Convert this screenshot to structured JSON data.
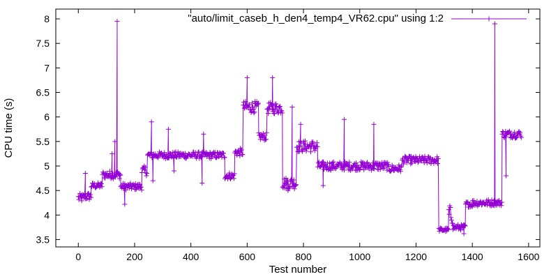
{
  "chart_data": {
    "type": "line",
    "title": "",
    "xlabel": "Test number",
    "ylabel": "CPU time (s)",
    "xlim": [
      -80,
      1640
    ],
    "ylim": [
      3.35,
      8.2
    ],
    "xticks": [
      0,
      200,
      400,
      600,
      800,
      1000,
      1200,
      1400,
      1600
    ],
    "yticks": [
      3.5,
      4,
      4.5,
      5,
      5.5,
      6,
      6.5,
      7,
      7.5,
      8
    ],
    "grid": false,
    "legend_position": "top-right",
    "marker": "plus",
    "color": "#9400d3",
    "series": [
      {
        "name": "\"auto/limit_caseb_h_den4_temp4_VR62.cpu\" using 1:2",
        "color": "#9400d3",
        "segments": [
          {
            "x0": 0,
            "x1": 20,
            "base": 4.35,
            "noise": 0.09
          },
          {
            "x0": 21,
            "x1": 45,
            "base": 4.38,
            "noise": 0.08
          },
          {
            "x0": 46,
            "x1": 85,
            "base": 4.6,
            "noise": 0.06
          },
          {
            "x0": 86,
            "x1": 150,
            "base": 4.82,
            "noise": 0.08
          },
          {
            "x0": 151,
            "x1": 225,
            "base": 4.58,
            "noise": 0.07
          },
          {
            "x0": 226,
            "x1": 245,
            "base": 4.9,
            "noise": 0.1
          },
          {
            "x0": 246,
            "x1": 520,
            "base": 5.22,
            "noise": 0.07
          },
          {
            "x0": 521,
            "x1": 555,
            "base": 4.8,
            "noise": 0.07
          },
          {
            "x0": 556,
            "x1": 585,
            "base": 5.28,
            "noise": 0.08
          },
          {
            "x0": 586,
            "x1": 640,
            "base": 6.2,
            "noise": 0.12
          },
          {
            "x0": 641,
            "x1": 670,
            "base": 5.6,
            "noise": 0.08
          },
          {
            "x0": 671,
            "x1": 725,
            "base": 6.18,
            "noise": 0.12
          },
          {
            "x0": 726,
            "x1": 775,
            "base": 4.65,
            "noise": 0.12
          },
          {
            "x0": 776,
            "x1": 850,
            "base": 5.4,
            "noise": 0.12
          },
          {
            "x0": 851,
            "x1": 1100,
            "base": 5.0,
            "noise": 0.09
          },
          {
            "x0": 1101,
            "x1": 1150,
            "base": 4.95,
            "noise": 0.08
          },
          {
            "x0": 1151,
            "x1": 1280,
            "base": 5.12,
            "noise": 0.08
          },
          {
            "x0": 1281,
            "x1": 1315,
            "base": 3.7,
            "noise": 0.04
          },
          {
            "x0": 1316,
            "x1": 1330,
            "base": 4.0,
            "noise": 0.2
          },
          {
            "x0": 1331,
            "x1": 1375,
            "base": 3.75,
            "noise": 0.06
          },
          {
            "x0": 1376,
            "x1": 1400,
            "base": 4.22,
            "noise": 0.06
          },
          {
            "x0": 1401,
            "x1": 1470,
            "base": 4.25,
            "noise": 0.07
          },
          {
            "x0": 1471,
            "x1": 1505,
            "base": 4.25,
            "noise": 0.06
          },
          {
            "x0": 1506,
            "x1": 1575,
            "base": 5.65,
            "noise": 0.08
          }
        ],
        "spikes": [
          {
            "x": 25,
            "y": 4.85
          },
          {
            "x": 120,
            "y": 5.25
          },
          {
            "x": 130,
            "y": 5.5
          },
          {
            "x": 138,
            "y": 7.95
          },
          {
            "x": 165,
            "y": 4.22
          },
          {
            "x": 260,
            "y": 5.9
          },
          {
            "x": 265,
            "y": 4.7
          },
          {
            "x": 320,
            "y": 5.75
          },
          {
            "x": 340,
            "y": 4.9
          },
          {
            "x": 440,
            "y": 4.65
          },
          {
            "x": 445,
            "y": 5.65
          },
          {
            "x": 600,
            "y": 6.8
          },
          {
            "x": 690,
            "y": 6.8
          },
          {
            "x": 745,
            "y": 4.5
          },
          {
            "x": 760,
            "y": 6.2
          },
          {
            "x": 790,
            "y": 5.85
          },
          {
            "x": 870,
            "y": 4.6
          },
          {
            "x": 945,
            "y": 5.95
          },
          {
            "x": 1050,
            "y": 5.85
          },
          {
            "x": 1480,
            "y": 7.9
          },
          {
            "x": 1520,
            "y": 4.8
          },
          {
            "x": 1370,
            "y": 3.62
          }
        ]
      }
    ]
  }
}
